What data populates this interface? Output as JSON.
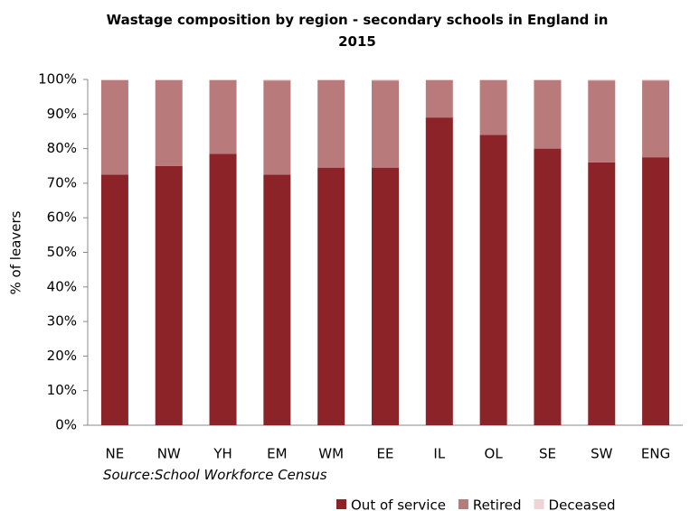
{
  "chart_data": {
    "type": "stacked_bar",
    "title": "Wastage composition by region - secondary schools in England in 2015",
    "y_label": "% of leavers",
    "source": "Source:School Workforce Census",
    "categories": [
      "NE",
      "NW",
      "YH",
      "EM",
      "WM",
      "EE",
      "IL",
      "OL",
      "SE",
      "SW",
      "ENG"
    ],
    "series": [
      {
        "name": "Out of service",
        "color": "#8b2328",
        "values": [
          72.5,
          75,
          78.5,
          72.5,
          74.5,
          74.5,
          89,
          84,
          80,
          76,
          77.5
        ]
      },
      {
        "name": "Retired",
        "color": "#b87a7a",
        "values": [
          27.3,
          24.8,
          21.3,
          27.2,
          25.3,
          25.2,
          10.8,
          15.8,
          19.8,
          23.7,
          22.2
        ]
      },
      {
        "name": "Deceased",
        "color": "#f0d3d3",
        "values": [
          0.2,
          0.2,
          0.2,
          0.3,
          0.2,
          0.3,
          0.2,
          0.2,
          0.2,
          0.3,
          0.3
        ]
      }
    ],
    "ylim": [
      0,
      100
    ],
    "yticks": [
      {
        "value": 0,
        "label": "0%"
      },
      {
        "value": 10,
        "label": "10%"
      },
      {
        "value": 20,
        "label": "20%"
      },
      {
        "value": 30,
        "label": "30%"
      },
      {
        "value": 40,
        "label": "40%"
      },
      {
        "value": 50,
        "label": "50%"
      },
      {
        "value": 60,
        "label": "60%"
      },
      {
        "value": 70,
        "label": "70%"
      },
      {
        "value": 80,
        "label": "80%"
      },
      {
        "value": 90,
        "label": "90%"
      },
      {
        "value": 100,
        "label": "100%"
      }
    ]
  }
}
